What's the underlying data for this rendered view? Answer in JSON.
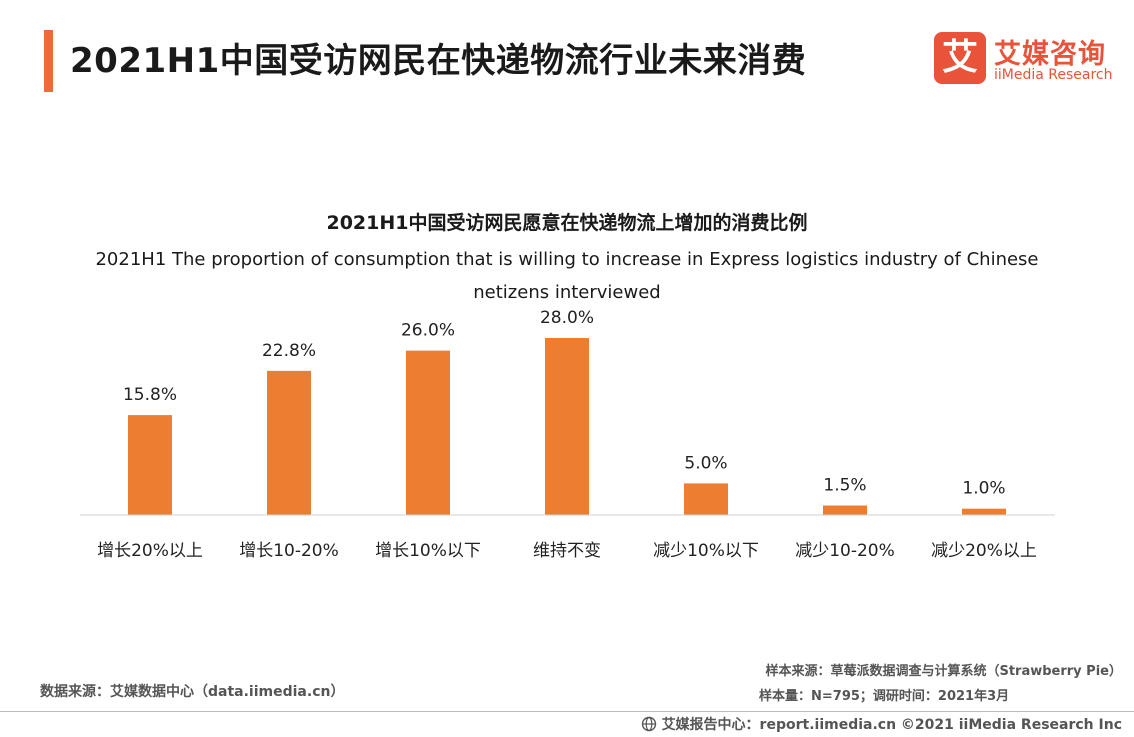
{
  "header": {
    "title": "2021H1中国受访网民在快递物流行业未来消费"
  },
  "logo": {
    "mark": "艾",
    "name_cn": "艾媒咨询",
    "name_en": "iiMedia Research"
  },
  "colors": {
    "accent": "#ee6a3a",
    "bar": "#ed7d31",
    "brand": "#e8533a"
  },
  "chart_data": {
    "type": "bar",
    "title": "2021H1中国受访网民愿意在快递物流上增加的消费比例",
    "subtitle": "2021H1 The  proportion of consumption  that is willing to increase  in Express logistics industry of Chinese netizens interviewed",
    "categories": [
      "增长20%以上",
      "增长10-20%",
      "增长10%以下",
      "维持不变",
      "减少10%以下",
      "减少10-20%",
      "减少20%以上"
    ],
    "values": [
      15.8,
      22.8,
      26.0,
      28.0,
      5.0,
      1.5,
      1.0
    ],
    "value_labels": [
      "15.8%",
      "22.8%",
      "26.0%",
      "28.0%",
      "5.0%",
      "1.5%",
      "1.0%"
    ],
    "unit": "%",
    "ylim": [
      0,
      28
    ],
    "grid": false,
    "legend": "none"
  },
  "notes": {
    "sample_source": "样本来源：草莓派数据调查与计算系统（Strawberry Pie）",
    "sample_size": "样本量：N=795；调研时间：2021年3月",
    "data_source": "数据来源：艾媒数据中心（data.iimedia.cn）"
  },
  "footer": {
    "text": "艾媒报告中心：report.iimedia.cn  ©2021  iiMedia Research  Inc",
    "icon": "globe-icon"
  }
}
